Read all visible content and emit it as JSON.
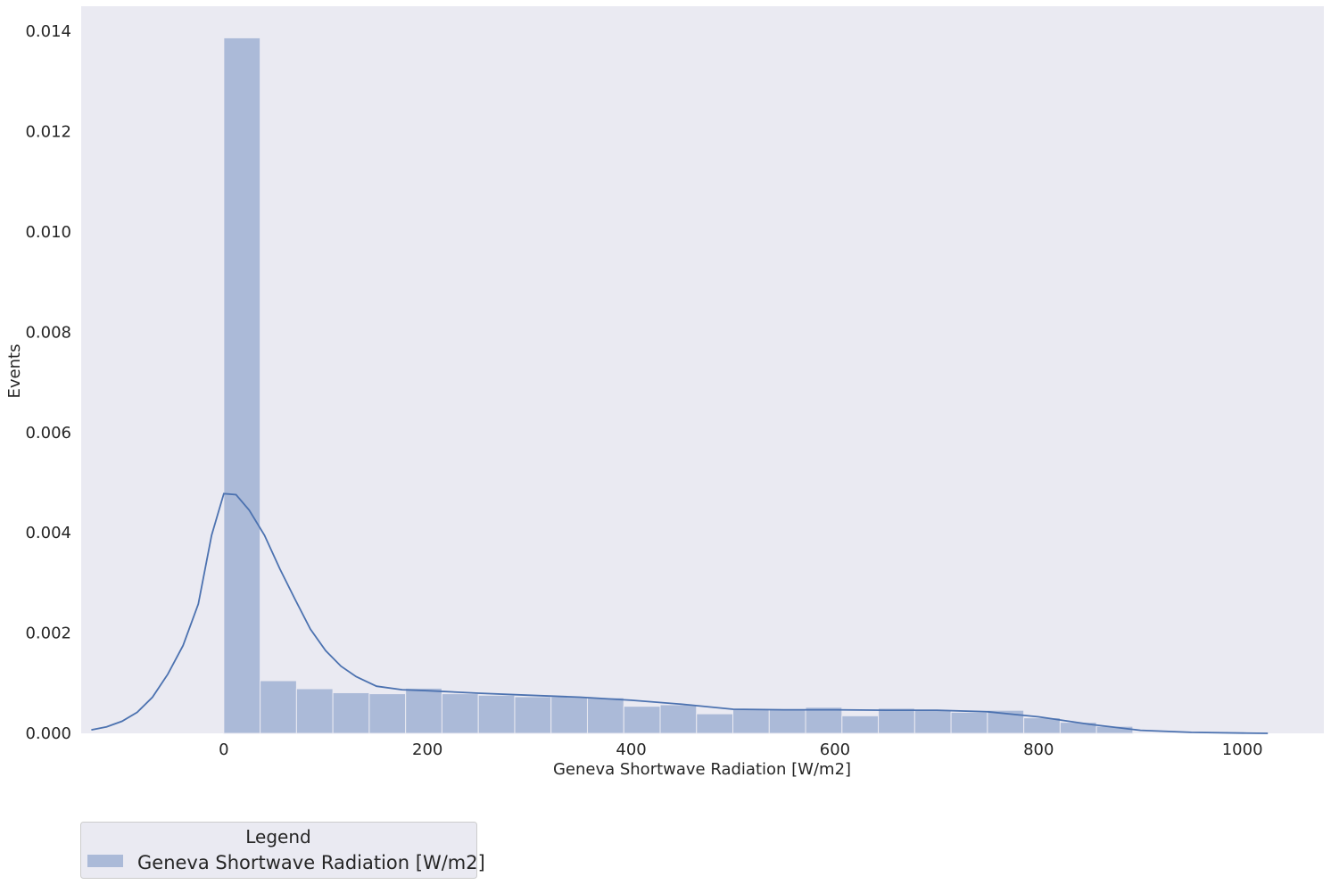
{
  "chart_data": {
    "type": "bar",
    "subtype": "histogram-with-kde",
    "title": "",
    "xlabel": "Geneva Shortwave Radiation [W/m2]",
    "ylabel": "Events",
    "xlim": [
      -140,
      1080
    ],
    "ylim": [
      0,
      0.0145
    ],
    "xticks": [
      0,
      200,
      400,
      600,
      800,
      1000
    ],
    "xtick_labels": [
      "0",
      "200",
      "400",
      "600",
      "800",
      "1000"
    ],
    "yticks": [
      0,
      0.002,
      0.004,
      0.006,
      0.008,
      0.01,
      0.012,
      0.014
    ],
    "ytick_labels": [
      "0.000",
      "0.002",
      "0.004",
      "0.006",
      "0.008",
      "0.010",
      "0.012",
      "0.014"
    ],
    "grid": false,
    "legend": {
      "title": "Legend",
      "placement": "below-left",
      "entries": [
        "Geneva Shortwave Radiation [W/m2]"
      ]
    },
    "colors": {
      "plot_background": "#eaeaf2",
      "bar_fill": "#abbad8",
      "bar_edge": "#eaeaf2",
      "kde_line": "#4c72b0"
    },
    "bin_edges": [
      0,
      35.7,
      71.4,
      107.1,
      142.8,
      178.5,
      214.2,
      249.9,
      285.6,
      321.3,
      357.0,
      392.7,
      428.4,
      464.1,
      499.8,
      535.5,
      571.2,
      606.9,
      642.6,
      678.3,
      714.0,
      749.7,
      785.4,
      821.1,
      856.8,
      892.5
    ],
    "values": [
      0.01387,
      0.00105,
      0.00089,
      0.00081,
      0.00079,
      0.0009,
      0.00079,
      0.00076,
      0.00073,
      0.00073,
      0.00071,
      0.00054,
      0.00057,
      0.00039,
      0.00048,
      0.00048,
      0.00052,
      0.00035,
      0.0005,
      0.00047,
      0.00042,
      0.00046,
      0.00031,
      0.00022,
      0.00014
    ],
    "series": [
      {
        "name": "Geneva Shortwave Radiation [W/m2]",
        "kind": "kde",
        "x": [
          -130,
          -115,
          -100,
          -85,
          -70,
          -55,
          -40,
          -25,
          -12,
          0,
          12,
          25,
          40,
          55,
          70,
          85,
          100,
          115,
          130,
          150,
          175,
          200,
          250,
          300,
          350,
          400,
          450,
          500,
          550,
          600,
          650,
          700,
          750,
          800,
          850,
          900,
          950,
          1000,
          1025
        ],
        "y": [
          7e-05,
          0.00013,
          0.00024,
          0.00042,
          0.00072,
          0.00118,
          0.00175,
          0.00258,
          0.00395,
          0.00478,
          0.00476,
          0.00445,
          0.00395,
          0.00328,
          0.00267,
          0.00208,
          0.00165,
          0.00134,
          0.00113,
          0.00094,
          0.00087,
          0.00085,
          0.0008,
          0.00076,
          0.00072,
          0.00066,
          0.00058,
          0.00048,
          0.00047,
          0.00047,
          0.00046,
          0.00046,
          0.00043,
          0.00033,
          0.00018,
          6e-05,
          2e-05,
          5e-06,
          0.0
        ]
      }
    ]
  }
}
